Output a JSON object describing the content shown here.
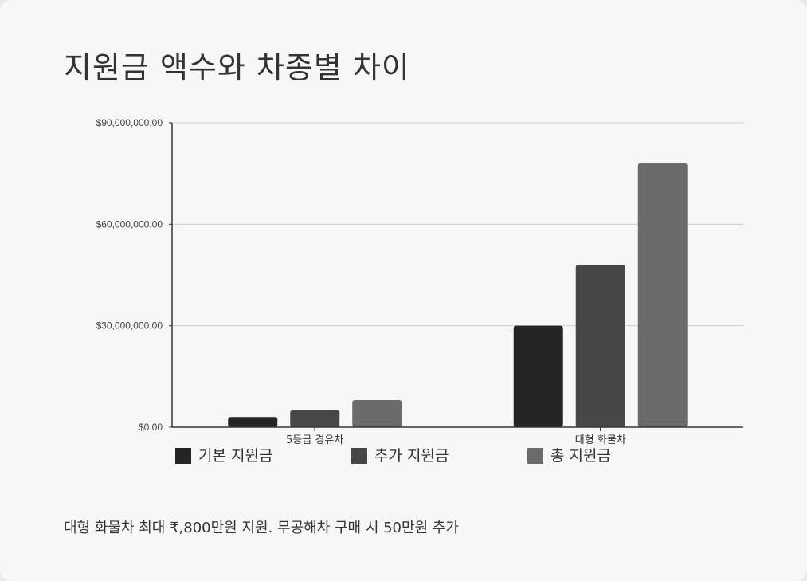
{
  "title": "지원금 액수와 차종별 차이",
  "footnote": "대형 화물차 최대 ₹,800만원 지원. 무공해차 구매 시 50만원 추가",
  "colors": {
    "base": "#242424",
    "extra": "#474747",
    "total": "#6b6b6b",
    "grid": "#cccccc",
    "axis": "#333333"
  },
  "chart_data": {
    "type": "bar",
    "categories": [
      "5등급 경유차",
      "대형 화물차"
    ],
    "series": [
      {
        "name": "기본 지원금",
        "values": [
          3000000,
          30000000
        ]
      },
      {
        "name": "추가 지원금",
        "values": [
          5000000,
          48000000
        ]
      },
      {
        "name": "총 지원금",
        "values": [
          8000000,
          78000000
        ]
      }
    ],
    "yticks": [
      "$0.00",
      "$30,000,000.00",
      "$60,000,000.00",
      "$90,000,000.00"
    ],
    "ytick_values": [
      0,
      30000000,
      60000000,
      90000000
    ],
    "ylim": [
      0,
      90000000
    ],
    "grid": true,
    "legend_position": "bottom-left"
  }
}
